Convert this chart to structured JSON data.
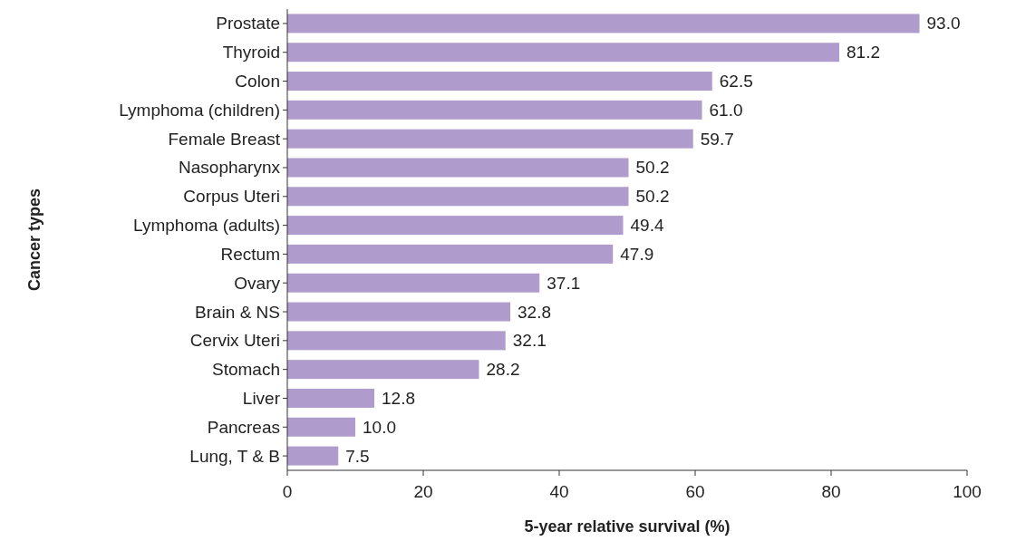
{
  "chart_data": {
    "type": "bar",
    "orientation": "horizontal",
    "xlabel": "5-year relative survival (%)",
    "ylabel": "Cancer types",
    "categories": [
      "Prostate",
      "Thyroid",
      "Colon",
      "Lymphoma (children)",
      "Female Breast",
      "Nasopharynx",
      "Corpus Uteri",
      "Lymphoma (adults)",
      "Rectum",
      "Ovary",
      "Brain & NS",
      "Cervix Uteri",
      "Stomach",
      "Liver",
      "Pancreas",
      "Lung, T & B"
    ],
    "values": [
      93.0,
      81.2,
      62.5,
      61.0,
      59.7,
      50.2,
      50.2,
      49.4,
      47.9,
      37.1,
      32.8,
      32.1,
      28.2,
      12.8,
      10.0,
      7.5
    ],
    "value_labels": [
      "93.0",
      "81.2",
      "62.5",
      "61.0",
      "59.7",
      "50.2",
      "50.2",
      "49.4",
      "47.9",
      "37.1",
      "32.8",
      "32.1",
      "28.2",
      "12.8",
      "10.0",
      "7.5"
    ],
    "color": "#b09ccc",
    "xlim": [
      0,
      100
    ],
    "xticks": [
      0,
      20,
      40,
      60,
      80,
      100
    ],
    "grid": false
  }
}
